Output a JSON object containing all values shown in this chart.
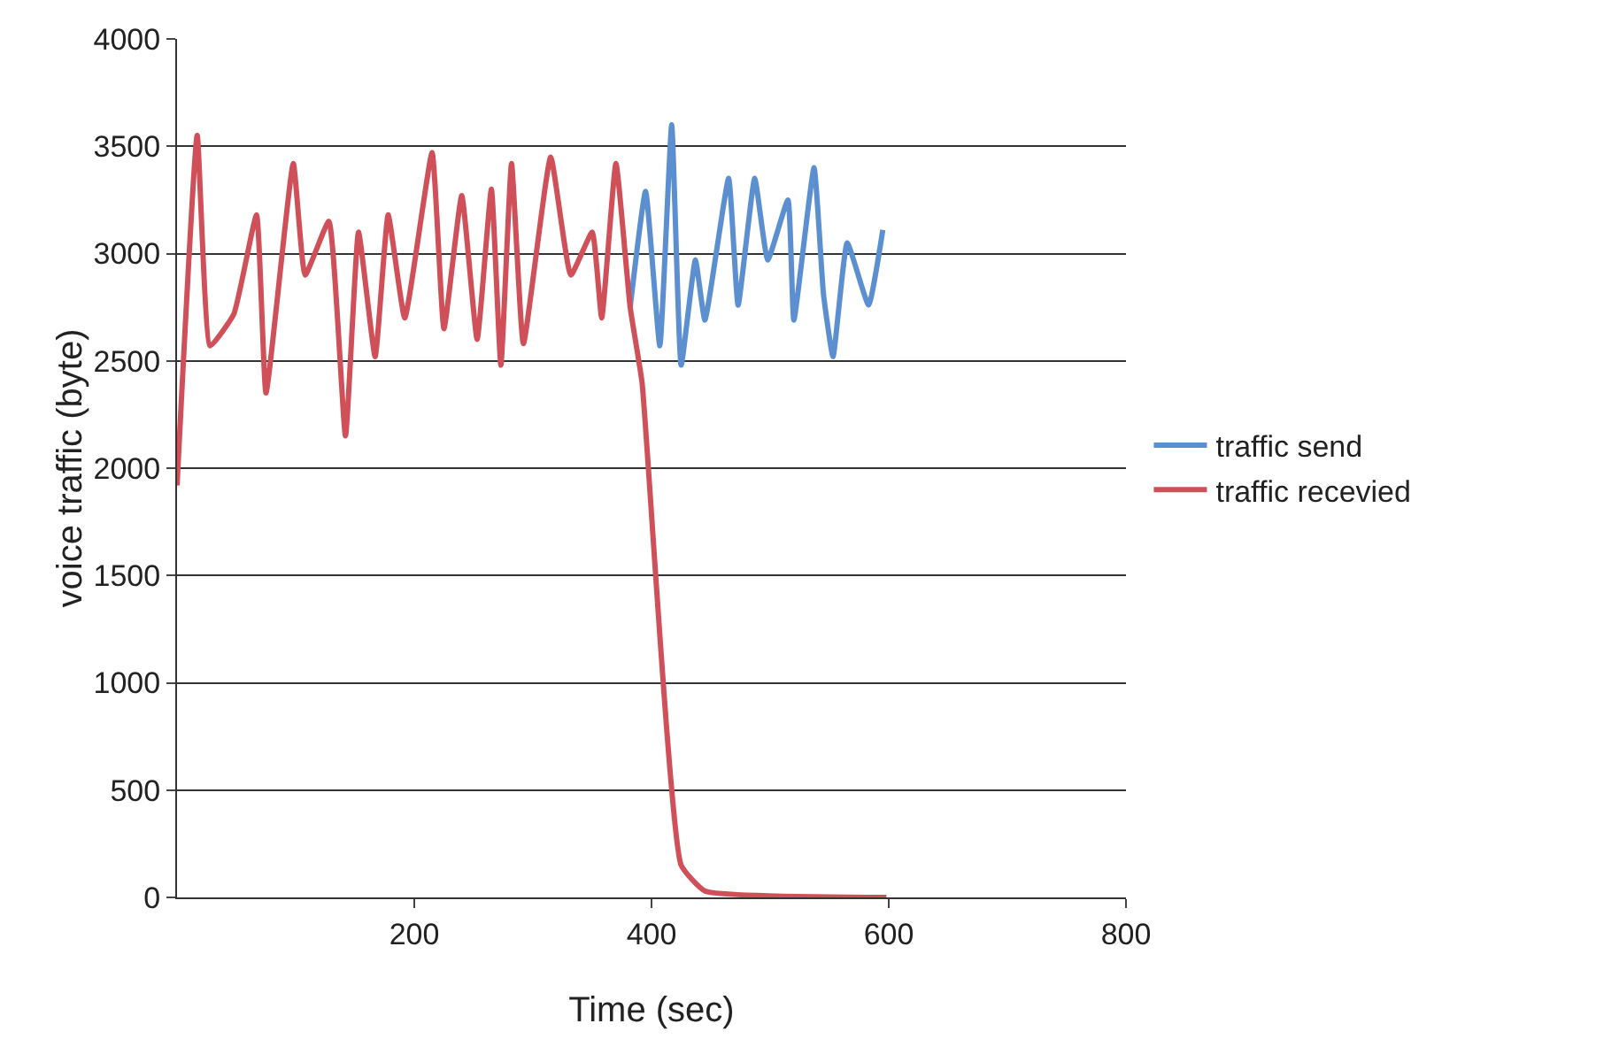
{
  "chart_data": {
    "type": "line",
    "xlabel": "Time (sec)",
    "ylabel": "voice traffic (byte)",
    "xlim": [
      0,
      800
    ],
    "xticks": [
      200,
      400,
      600,
      800
    ],
    "ylim": [
      0,
      4000
    ],
    "yticks": [
      0,
      500,
      1000,
      1500,
      2000,
      2500,
      3000,
      3500,
      4000
    ],
    "grid": "y",
    "legend": "right",
    "marker": "none",
    "line_style": "solid",
    "series": [
      {
        "name": "traffic send",
        "color": "#5b8fd0",
        "x": [
          382,
          395,
          407,
          417,
          425,
          437,
          445,
          465,
          473,
          487,
          498,
          515,
          520,
          537,
          545,
          553,
          565,
          583,
          595
        ],
        "values": [
          2750,
          3290,
          2570,
          3600,
          2480,
          2970,
          2690,
          3350,
          2760,
          3350,
          2970,
          3250,
          2690,
          3400,
          2810,
          2520,
          3050,
          2760,
          3110
        ]
      },
      {
        "name": "traffic recevied",
        "color": "#d0505a",
        "x": [
          0,
          17,
          28,
          48,
          67,
          75,
          98,
          108,
          128,
          142,
          153,
          167,
          178,
          192,
          215,
          225,
          240,
          253,
          265,
          273,
          282,
          292,
          315,
          332,
          350,
          358,
          370,
          382,
          392,
          425,
          445,
          598
        ],
        "values": [
          1920,
          3550,
          2570,
          2720,
          3180,
          2350,
          3420,
          2900,
          3150,
          2150,
          3100,
          2520,
          3180,
          2700,
          3470,
          2650,
          3270,
          2600,
          3300,
          2480,
          3420,
          2580,
          3450,
          2900,
          3100,
          2700,
          3420,
          2750,
          2400,
          150,
          30,
          0
        ]
      }
    ]
  }
}
